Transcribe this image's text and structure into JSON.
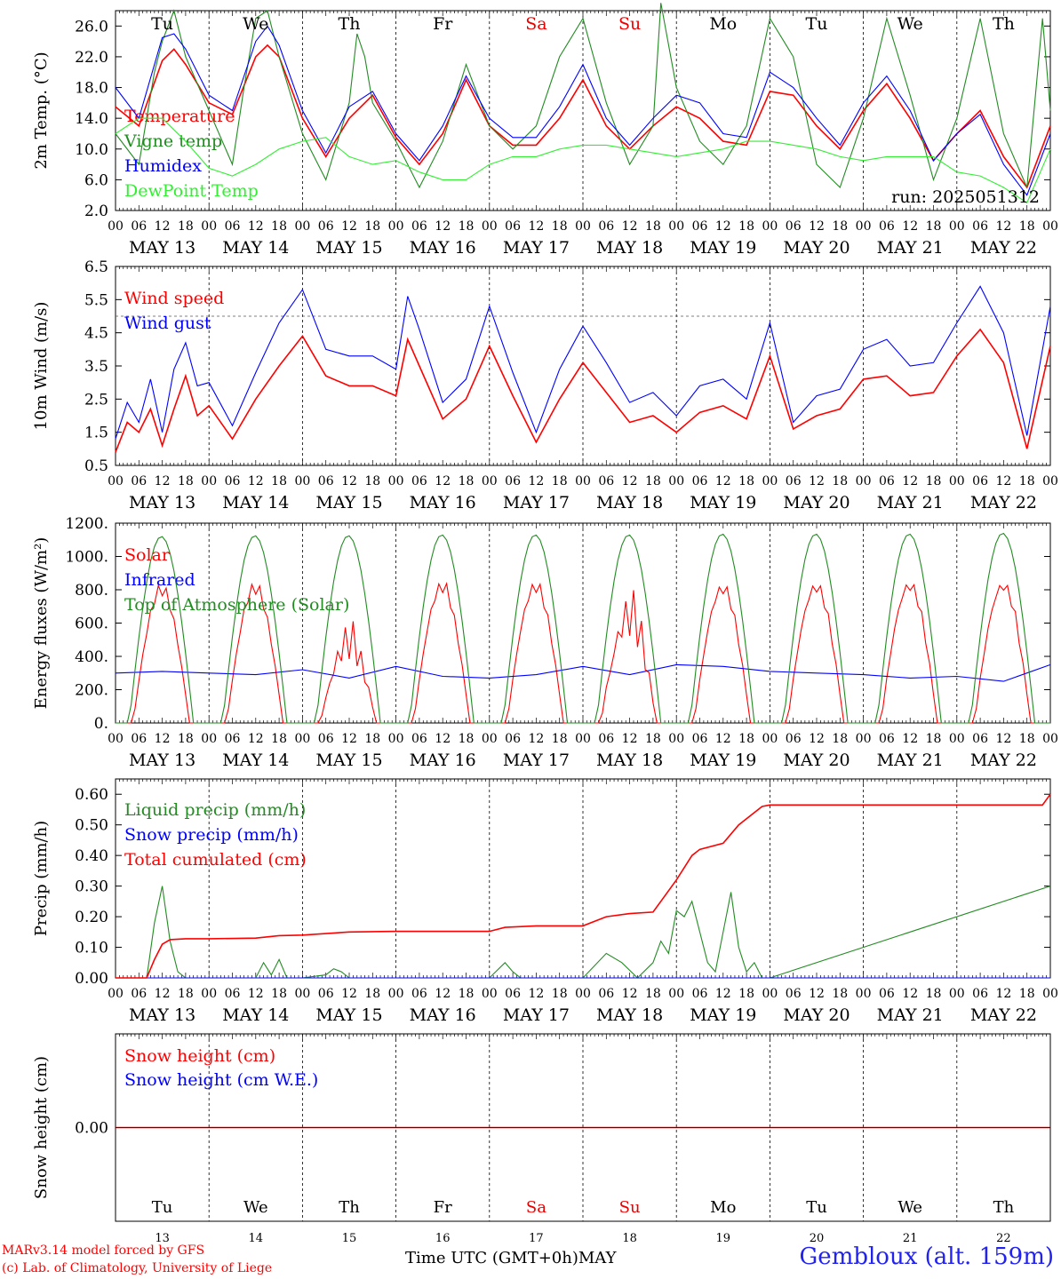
{
  "run_label": "run: 2025051312",
  "weekdays": [
    "Tu",
    "We",
    "Th",
    "Fr",
    "Sa",
    "Su",
    "Mo",
    "Tu",
    "We",
    "Th"
  ],
  "weekday_colors": [
    "#000000",
    "#000000",
    "#000000",
    "#000000",
    "#ee0000",
    "#ee0000",
    "#000000",
    "#000000",
    "#000000",
    "#000000"
  ],
  "date_labels": [
    "MAY 13",
    "MAY 14",
    "MAY 15",
    "MAY 16",
    "MAY 17",
    "MAY 18",
    "MAY 19",
    "MAY 20",
    "MAY 21",
    "MAY 22"
  ],
  "hour_labels": [
    "00",
    "06",
    "12",
    "18"
  ],
  "day_numbers": [
    "13",
    "14",
    "15",
    "16",
    "17",
    "18",
    "19",
    "20",
    "21",
    "22"
  ],
  "footer": {
    "model": "MARv3.14 model forced by GFS",
    "lab": "(c) Lab. of Climatology, University of Liege",
    "xlabel": "Time UTC (GMT+0h)",
    "month": "MAY",
    "station": "Gembloux (alt. 159m)"
  },
  "chart_data": [
    {
      "type": "line",
      "ylabel": "2m Temp. (°C)",
      "ylim": [
        2,
        28
      ],
      "yticks": [
        2,
        6,
        10,
        14,
        18,
        22,
        26
      ],
      "ytick_labels": [
        "2.0",
        "6.0",
        "10.0",
        "14.0",
        "18.0",
        "22.0",
        "26.0"
      ],
      "legend_placement": "top-left",
      "x_unit": "hours since 2025-05-13 00 UTC",
      "series": [
        {
          "name": "Temperature",
          "color": "#ff0000",
          "x": [
            0,
            6,
            12,
            15,
            18,
            24,
            30,
            36,
            39,
            42,
            48,
            54,
            60,
            66,
            72,
            78,
            84,
            90,
            96,
            102,
            108,
            114,
            120,
            126,
            132,
            138,
            144,
            150,
            156,
            162,
            168,
            174,
            180,
            186,
            192,
            198,
            204,
            210,
            216,
            222,
            228,
            234,
            240
          ],
          "values": [
            15.5,
            13,
            21.5,
            23,
            21,
            16,
            14.5,
            22,
            23.5,
            22,
            14,
            9,
            14,
            17,
            11.5,
            8,
            12,
            19,
            13,
            10.5,
            10.5,
            14,
            19,
            13,
            10,
            13,
            15.5,
            14,
            11,
            10.5,
            17.5,
            17,
            13,
            10,
            15,
            18.5,
            14,
            8.5,
            12,
            15,
            9,
            5,
            13
          ]
        },
        {
          "name": "Vigne temp",
          "color": "#228b22",
          "x": [
            0,
            6,
            10,
            12,
            15,
            18,
            24,
            30,
            33,
            36,
            39,
            42,
            48,
            54,
            60,
            62,
            64,
            66,
            72,
            78,
            84,
            90,
            96,
            102,
            108,
            114,
            120,
            126,
            132,
            138,
            140,
            144,
            150,
            156,
            162,
            168,
            174,
            180,
            186,
            192,
            198,
            204,
            210,
            216,
            222,
            228,
            234,
            238,
            240
          ],
          "values": [
            12,
            8,
            20,
            24,
            28,
            22,
            15,
            8,
            18,
            27,
            28,
            22,
            12,
            6,
            16,
            25,
            22,
            16,
            11,
            5,
            11,
            21,
            13,
            10,
            13,
            22,
            27,
            16,
            8,
            13,
            29,
            18,
            11,
            8,
            13,
            27,
            22,
            8,
            5,
            14,
            27,
            17,
            6,
            14,
            27,
            12,
            5,
            27,
            15
          ]
        },
        {
          "name": "Humidex",
          "color": "#0000ff",
          "x": [
            0,
            6,
            12,
            15,
            18,
            24,
            30,
            36,
            39,
            42,
            48,
            54,
            60,
            66,
            72,
            78,
            84,
            90,
            96,
            102,
            108,
            114,
            120,
            126,
            132,
            138,
            144,
            150,
            156,
            162,
            168,
            174,
            180,
            186,
            192,
            198,
            204,
            210,
            216,
            222,
            228,
            234,
            240
          ],
          "values": [
            18,
            14,
            24.5,
            25,
            23,
            17,
            15,
            24,
            26,
            23.5,
            15,
            9.5,
            15.5,
            17.5,
            12,
            8.5,
            13,
            19.5,
            14,
            11.5,
            11.5,
            15.5,
            21,
            14,
            10.5,
            14,
            17,
            16,
            12,
            11.5,
            20,
            18,
            14,
            10.5,
            16,
            19.5,
            15,
            8.5,
            12,
            14.5,
            8,
            4,
            12
          ]
        },
        {
          "name": "DewPoint Temp",
          "color": "#33ee33",
          "x": [
            0,
            6,
            12,
            18,
            24,
            30,
            36,
            42,
            48,
            54,
            60,
            66,
            72,
            78,
            84,
            90,
            96,
            102,
            108,
            114,
            120,
            126,
            132,
            138,
            144,
            150,
            156,
            162,
            168,
            174,
            180,
            186,
            192,
            198,
            204,
            210,
            216,
            222,
            228,
            234,
            240
          ],
          "values": [
            12,
            14,
            14,
            11,
            7.5,
            6.5,
            8,
            10,
            11,
            11.5,
            9,
            8,
            8.5,
            7,
            6,
            6,
            8,
            9,
            9,
            10,
            10.5,
            10.5,
            10,
            9.5,
            9,
            9.5,
            10,
            11,
            11,
            10.5,
            10,
            9,
            8.5,
            9,
            9,
            9,
            7,
            6.5,
            5,
            3,
            10
          ]
        }
      ]
    },
    {
      "type": "line",
      "ylabel": "10m Wind (m/s)",
      "ylim": [
        0.5,
        6.5
      ],
      "yticks": [
        0.5,
        1.5,
        2.5,
        3.5,
        4.5,
        5.5,
        6.5
      ],
      "ytick_labels": [
        "0.5",
        "1.5",
        "2.5",
        "3.5",
        "4.5",
        "5.5",
        "6.5"
      ],
      "reference_line": 5,
      "legend_placement": "top-left",
      "x_unit": "hours since 2025-05-13 00 UTC",
      "series": [
        {
          "name": "Wind speed",
          "color": "#ff0000",
          "x": [
            0,
            3,
            6,
            9,
            12,
            15,
            18,
            21,
            24,
            30,
            36,
            42,
            48,
            54,
            60,
            66,
            72,
            75,
            78,
            84,
            90,
            96,
            102,
            108,
            114,
            120,
            126,
            132,
            138,
            144,
            150,
            156,
            162,
            168,
            174,
            180,
            186,
            192,
            198,
            204,
            210,
            216,
            222,
            228,
            234,
            240
          ],
          "values": [
            0.9,
            1.8,
            1.5,
            2.2,
            1.1,
            2.2,
            3.2,
            2,
            2.3,
            1.3,
            2.5,
            3.5,
            4.4,
            3.2,
            2.9,
            2.9,
            2.6,
            4.3,
            3.5,
            1.9,
            2.5,
            4.1,
            2.6,
            1.2,
            2.5,
            3.6,
            2.7,
            1.8,
            2.0,
            1.5,
            2.1,
            2.3,
            1.9,
            3.8,
            1.6,
            2.0,
            2.2,
            3.1,
            3.2,
            2.6,
            2.7,
            3.8,
            4.6,
            3.6,
            1.0,
            4.1
          ]
        },
        {
          "name": "Wind gust",
          "color": "#0000ff",
          "x": [
            0,
            3,
            6,
            9,
            12,
            15,
            18,
            21,
            24,
            30,
            36,
            42,
            48,
            54,
            60,
            66,
            72,
            75,
            78,
            84,
            90,
            96,
            102,
            108,
            114,
            120,
            126,
            132,
            138,
            144,
            150,
            156,
            162,
            168,
            174,
            180,
            186,
            192,
            198,
            204,
            210,
            216,
            222,
            228,
            234,
            240
          ],
          "values": [
            1.3,
            2.4,
            1.8,
            3.1,
            1.5,
            3.4,
            4.2,
            2.9,
            3,
            1.7,
            3.3,
            4.8,
            5.8,
            4.0,
            3.8,
            3.8,
            3.4,
            5.6,
            4.6,
            2.4,
            3.1,
            5.3,
            3.3,
            1.5,
            3.4,
            4.7,
            3.6,
            2.4,
            2.7,
            2.0,
            2.9,
            3.1,
            2.5,
            4.8,
            1.8,
            2.6,
            2.8,
            4.0,
            4.3,
            3.5,
            3.6,
            4.8,
            5.9,
            4.5,
            1.4,
            5.3
          ]
        }
      ]
    },
    {
      "type": "line",
      "ylabel": "Energy fluxes (W/m²)",
      "ylim": [
        0,
        1200
      ],
      "yticks": [
        0,
        200,
        400,
        600,
        800,
        1000,
        1200
      ],
      "ytick_labels": [
        "0.",
        "200.",
        "400.",
        "600.",
        "800.",
        "1000.",
        "1200."
      ],
      "legend_placement": "top-left",
      "x_unit": "hours since 2025-05-13 00 UTC",
      "series": [
        {
          "name": "Solar",
          "color": "#ff0000",
          "daily_peaks": [
            850,
            860,
            640,
            870,
            870,
            860,
            860,
            870,
            880,
            880
          ]
        },
        {
          "name": "Infrared",
          "color": "#0000ff",
          "x": [
            0,
            12,
            24,
            36,
            48,
            60,
            72,
            84,
            96,
            108,
            120,
            132,
            144,
            156,
            168,
            180,
            192,
            204,
            216,
            228,
            240
          ],
          "values": [
            300,
            310,
            300,
            290,
            320,
            270,
            340,
            280,
            270,
            290,
            340,
            290,
            350,
            340,
            310,
            300,
            290,
            270,
            280,
            250,
            350
          ]
        },
        {
          "name": "Top of Atmosphere (Solar)",
          "color": "#228b22",
          "daily_peaks": [
            1120,
            1125,
            1125,
            1130,
            1130,
            1130,
            1135,
            1135,
            1135,
            1140
          ]
        }
      ]
    },
    {
      "type": "line",
      "ylabel": "Precip (mm/h)",
      "ylim": [
        0,
        0.65
      ],
      "yticks": [
        0,
        0.1,
        0.2,
        0.3,
        0.4,
        0.5,
        0.6
      ],
      "ytick_labels": [
        "0.00",
        "0.10",
        "0.20",
        "0.30",
        "0.40",
        "0.50",
        "0.60"
      ],
      "legend_placement": "top-left",
      "x_unit": "hours since 2025-05-13 00 UTC",
      "series": [
        {
          "name": "Liquid precip (mm/h)",
          "color": "#228b22",
          "x": [
            0,
            8,
            10,
            12,
            14,
            16,
            18,
            36,
            38,
            40,
            42,
            44,
            48,
            54,
            56,
            58,
            60,
            66,
            96,
            100,
            102,
            104,
            108,
            120,
            126,
            130,
            134,
            138,
            140,
            142,
            144,
            146,
            148,
            150,
            152,
            154,
            156,
            158,
            160,
            162,
            164,
            166,
            168,
            240
          ],
          "values": [
            0,
            0,
            0.18,
            0.3,
            0.12,
            0.02,
            0,
            0,
            0.05,
            0.01,
            0.06,
            0,
            0,
            0.01,
            0.03,
            0.02,
            0,
            0,
            0,
            0.05,
            0.02,
            0,
            0,
            0,
            0.08,
            0.05,
            0,
            0.05,
            0.12,
            0.08,
            0.22,
            0.2,
            0.25,
            0.15,
            0.05,
            0.02,
            0.15,
            0.28,
            0.1,
            0.02,
            0.05,
            0,
            0,
            0.3
          ]
        },
        {
          "name": "Snow precip (mm/h)",
          "color": "#0000ff",
          "x": [
            0,
            240
          ],
          "values": [
            0,
            0
          ]
        },
        {
          "name": "Total cumulated (cm)",
          "color": "#ff0000",
          "x": [
            0,
            8,
            10,
            12,
            14,
            18,
            24,
            36,
            42,
            48,
            60,
            72,
            96,
            100,
            108,
            120,
            126,
            132,
            138,
            140,
            144,
            148,
            150,
            156,
            160,
            166,
            168,
            180,
            200,
            238,
            240
          ],
          "values": [
            0,
            0,
            0.06,
            0.11,
            0.125,
            0.128,
            0.128,
            0.13,
            0.138,
            0.14,
            0.15,
            0.152,
            0.152,
            0.165,
            0.17,
            0.17,
            0.2,
            0.21,
            0.215,
            0.25,
            0.32,
            0.4,
            0.42,
            0.44,
            0.5,
            0.56,
            0.565,
            0.565,
            0.565,
            0.565,
            0.6
          ]
        }
      ]
    },
    {
      "type": "line",
      "ylabel": "Snow height (cm)",
      "ylim": [
        -1,
        1
      ],
      "yticks": [
        0
      ],
      "ytick_labels": [
        "0.00"
      ],
      "legend_placement": "top-left",
      "x_unit": "hours since 2025-05-13 00 UTC",
      "series": [
        {
          "name": "Snow height (cm)",
          "color": "#ff0000",
          "x": [
            0,
            240
          ],
          "values": [
            0,
            0
          ]
        },
        {
          "name": "Snow height (cm W.E.)",
          "color": "#0000ff",
          "x": [
            0,
            240
          ],
          "values": [
            0,
            0
          ]
        }
      ]
    }
  ]
}
